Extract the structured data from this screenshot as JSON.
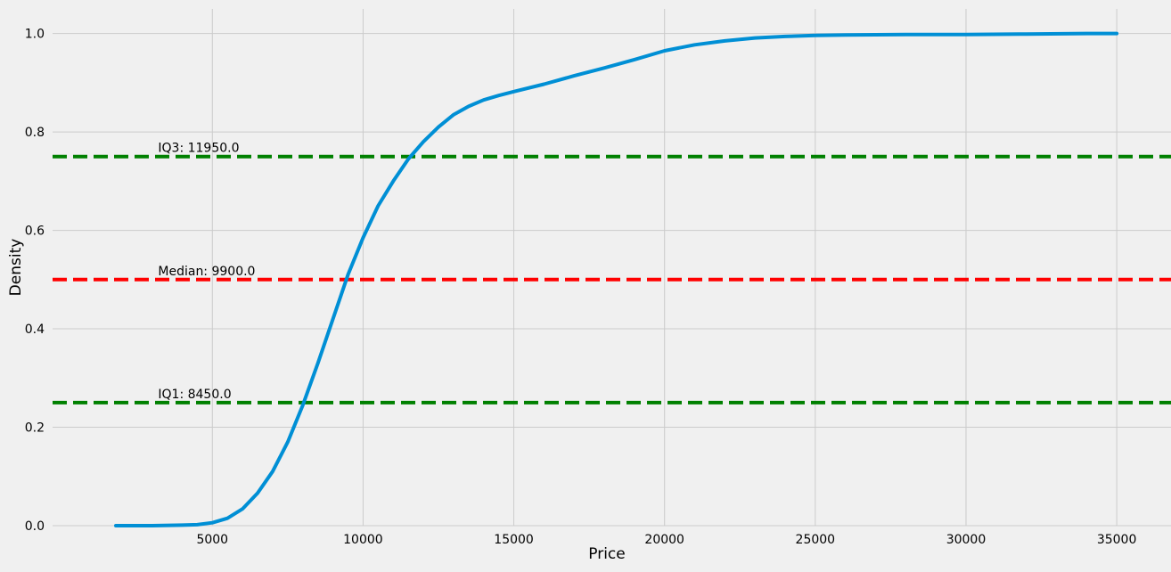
{
  "chart_data": {
    "type": "line",
    "title": "",
    "xlabel": "Price",
    "ylabel": "Density",
    "xlim": [
      -300,
      36800
    ],
    "ylim": [
      0,
      1.05
    ],
    "grid": true,
    "x_ticks": [
      5000,
      10000,
      15000,
      20000,
      25000,
      30000,
      35000
    ],
    "y_ticks": [
      0.0,
      0.2,
      0.4,
      0.6,
      0.8,
      1.0
    ],
    "series": [
      {
        "color": "#008fd5",
        "x": [
          1800,
          3000,
          4000,
          4500,
          5000,
          5500,
          6000,
          6500,
          7000,
          7500,
          8000,
          8500,
          9000,
          9500,
          10000,
          10500,
          11000,
          11500,
          12000,
          12500,
          13000,
          13500,
          14000,
          14500,
          15000,
          16000,
          17000,
          18000,
          19000,
          20000,
          21000,
          22000,
          23000,
          24000,
          25000,
          26000,
          28000,
          30000,
          32000,
          34000,
          35000
        ],
        "y": [
          0.0,
          0.0,
          0.001,
          0.002,
          0.006,
          0.015,
          0.034,
          0.066,
          0.11,
          0.17,
          0.245,
          0.33,
          0.42,
          0.51,
          0.585,
          0.65,
          0.7,
          0.745,
          0.78,
          0.81,
          0.835,
          0.852,
          0.865,
          0.874,
          0.882,
          0.897,
          0.914,
          0.93,
          0.947,
          0.965,
          0.977,
          0.985,
          0.991,
          0.994,
          0.996,
          0.997,
          0.998,
          0.998,
          0.999,
          1.0,
          1.0
        ]
      }
    ],
    "reference_lines": [
      {
        "y": 0.75,
        "color": "#008000",
        "label": "IQ3: 11950.0"
      },
      {
        "y": 0.5,
        "color": "#ff0000",
        "label": "Median: 9900.0"
      },
      {
        "y": 0.25,
        "color": "#008000",
        "label": "IQ1: 8450.0"
      }
    ],
    "annotation_x": 3200
  }
}
